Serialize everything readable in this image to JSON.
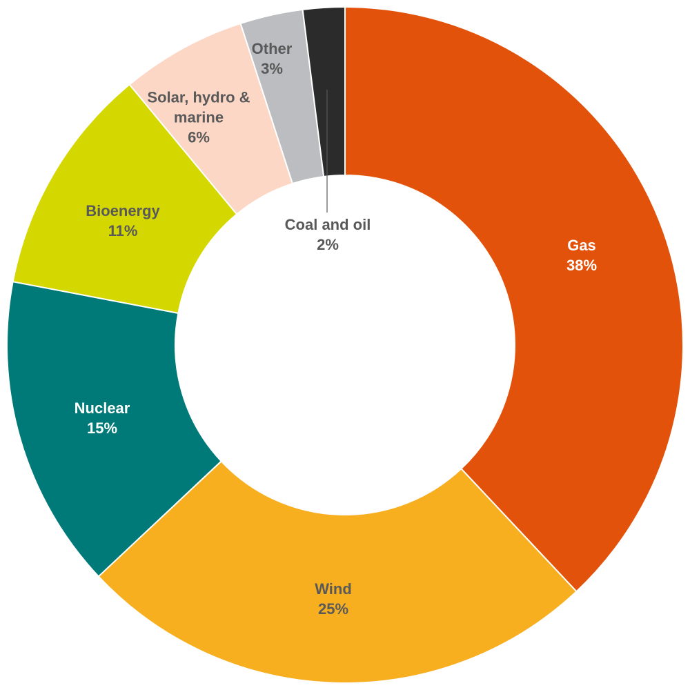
{
  "chart_data": {
    "type": "donut",
    "categories": [
      "Gas",
      "Wind",
      "Nuclear",
      "Bioenergy",
      "Solar, hydro & marine",
      "Other",
      "Coal and oil"
    ],
    "values": [
      38,
      25,
      15,
      11,
      6,
      3,
      2
    ],
    "value_labels": [
      "38%",
      "25%",
      "15%",
      "11%",
      "6%",
      "3%",
      "2%"
    ],
    "colors": [
      "#e2520a",
      "#f7ae1f",
      "#007a78",
      "#d4d800",
      "#fdd7c6",
      "#bcbdc0",
      "#2b2b2b"
    ]
  }
}
